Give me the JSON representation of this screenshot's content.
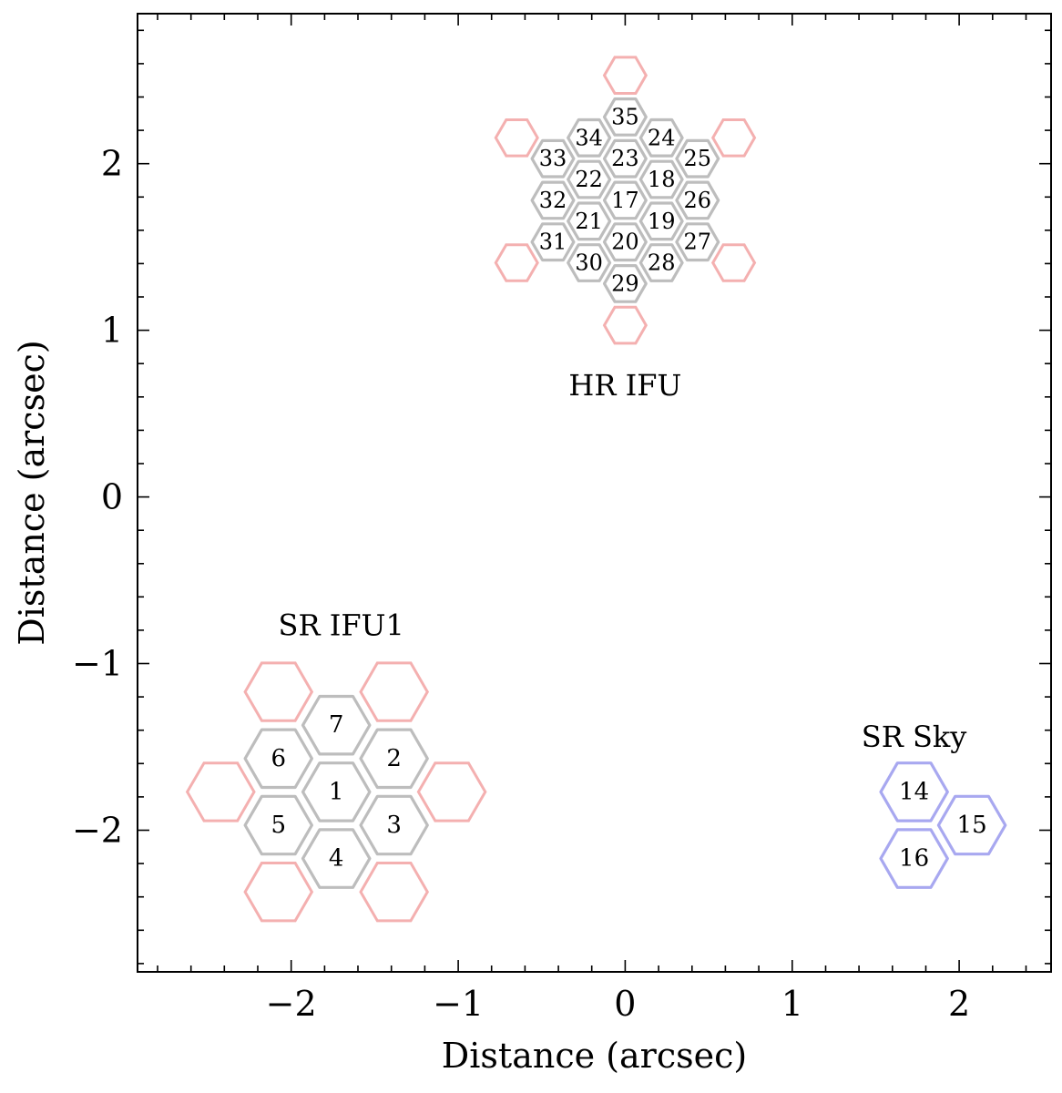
{
  "chart_data": {
    "type": "scatter",
    "title": "",
    "xlabel": "Distance (arcsec)",
    "ylabel": "Distance (arcsec)",
    "xlim": [
      -2.92,
      2.55
    ],
    "ylim": [
      -2.85,
      2.9
    ],
    "xticks": [
      -2,
      -1,
      0,
      1,
      2
    ],
    "yticks": [
      -2,
      -1,
      0,
      1,
      2
    ],
    "xtick_labels": [
      "−2",
      "−1",
      "0",
      "1",
      "2"
    ],
    "ytick_labels": [
      "−2",
      "−1",
      "0",
      "1",
      "2"
    ],
    "minor_tick_step": 0.2,
    "grid": false,
    "legend": "none",
    "colors": {
      "fiber_edge": "#bdbdbd",
      "guard_edge": "#f4b0b0",
      "sky_edge": "#a8a8f0"
    },
    "groups": [
      {
        "label": "HR IFU",
        "label_pos": [
          0.0,
          0.67
        ],
        "hex_radius": 0.125,
        "fibers": [
          {
            "id": "17",
            "x": 0.0,
            "y": 1.78
          },
          {
            "id": "18",
            "x": 0.217,
            "y": 1.905
          },
          {
            "id": "19",
            "x": 0.217,
            "y": 1.655
          },
          {
            "id": "20",
            "x": 0.0,
            "y": 1.53
          },
          {
            "id": "21",
            "x": -0.217,
            "y": 1.655
          },
          {
            "id": "22",
            "x": -0.217,
            "y": 1.905
          },
          {
            "id": "23",
            "x": 0.0,
            "y": 2.03
          },
          {
            "id": "24",
            "x": 0.217,
            "y": 2.155
          },
          {
            "id": "25",
            "x": 0.433,
            "y": 2.03
          },
          {
            "id": "26",
            "x": 0.433,
            "y": 1.78
          },
          {
            "id": "27",
            "x": 0.433,
            "y": 1.53
          },
          {
            "id": "28",
            "x": 0.217,
            "y": 1.405
          },
          {
            "id": "29",
            "x": 0.0,
            "y": 1.28
          },
          {
            "id": "30",
            "x": -0.217,
            "y": 1.405
          },
          {
            "id": "31",
            "x": -0.433,
            "y": 1.53
          },
          {
            "id": "32",
            "x": -0.433,
            "y": 1.78
          },
          {
            "id": "33",
            "x": -0.433,
            "y": 2.03
          },
          {
            "id": "34",
            "x": -0.217,
            "y": 2.155
          },
          {
            "id": "35",
            "x": 0.0,
            "y": 2.28
          }
        ],
        "guards": [
          {
            "x": 0.0,
            "y": 2.53
          },
          {
            "x": 0.65,
            "y": 2.155
          },
          {
            "x": 0.65,
            "y": 1.405
          },
          {
            "x": 0.0,
            "y": 1.03
          },
          {
            "x": -0.65,
            "y": 1.405
          },
          {
            "x": -0.65,
            "y": 2.155
          }
        ]
      },
      {
        "label": "SR IFU1",
        "label_pos": [
          -1.7,
          -0.77
        ],
        "hex_radius": 0.2,
        "fibers": [
          {
            "id": "1",
            "x": -1.73,
            "y": -1.77
          },
          {
            "id": "2",
            "x": -1.384,
            "y": -1.57
          },
          {
            "id": "3",
            "x": -1.384,
            "y": -1.97
          },
          {
            "id": "4",
            "x": -1.73,
            "y": -2.17
          },
          {
            "id": "5",
            "x": -2.076,
            "y": -1.97
          },
          {
            "id": "6",
            "x": -2.076,
            "y": -1.57
          },
          {
            "id": "7",
            "x": -1.73,
            "y": -1.37
          }
        ],
        "guards": [
          {
            "x": -1.384,
            "y": -1.17
          },
          {
            "x": -1.038,
            "y": -1.77
          },
          {
            "x": -1.384,
            "y": -2.37
          },
          {
            "x": -2.076,
            "y": -2.37
          },
          {
            "x": -2.422,
            "y": -1.77
          },
          {
            "x": -2.076,
            "y": -1.17
          }
        ]
      },
      {
        "label": "SR Sky",
        "label_pos": [
          1.73,
          -1.44
        ],
        "hex_radius": 0.2,
        "fibers": [],
        "guards": [],
        "sky": [
          {
            "id": "14",
            "x": 1.73,
            "y": -1.77
          },
          {
            "id": "15",
            "x": 2.076,
            "y": -1.97
          },
          {
            "id": "16",
            "x": 1.73,
            "y": -2.17
          }
        ]
      }
    ]
  }
}
